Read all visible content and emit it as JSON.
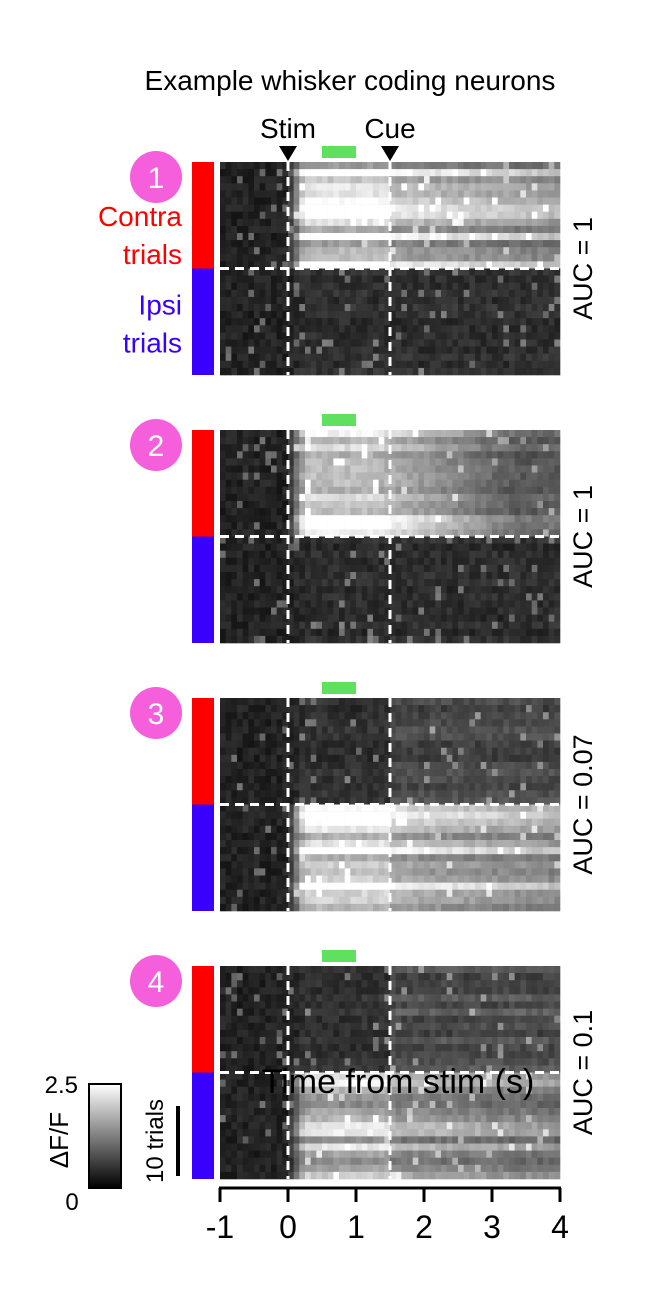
{
  "chart_data": {
    "type": "heatmap",
    "title": "Example whisker coding neurons",
    "xlabel": "Time from stim (s)",
    "xlim": [
      -1,
      4
    ],
    "xticks": [
      "-1",
      "0",
      "1",
      "2",
      "3",
      "4"
    ],
    "events": [
      {
        "label": "Stim",
        "time": 0
      },
      {
        "label": "Cue",
        "time": 1.5
      }
    ],
    "response_window": [
      0.5,
      1.0
    ],
    "response_window_color": "#5fe05f",
    "trial_groups": [
      {
        "label": "Contra\ntrials",
        "color": "#ff0000"
      },
      {
        "label": "Ipsi\ntrials",
        "color": "#3a00ff"
      }
    ],
    "colorbar": {
      "label": "ΔF/F",
      "min": "0",
      "max": "2.5"
    },
    "scalebar": "10 trials",
    "panels": [
      {
        "id": "1",
        "auc": "AUC = 1",
        "contra_trials": 15,
        "ipsi_trials": 15,
        "contra_level": 0.85,
        "ipsi_level": 0.15,
        "contra_profile": "sustained",
        "ipsi_profile": "weak",
        "show_events": true
      },
      {
        "id": "2",
        "auc": "AUC = 1",
        "contra_trials": 15,
        "ipsi_trials": 15,
        "contra_level": 0.75,
        "ipsi_level": 0.12,
        "contra_profile": "early",
        "ipsi_profile": "weak",
        "show_events": false
      },
      {
        "id": "3",
        "auc": "AUC = 0.07",
        "contra_trials": 15,
        "ipsi_trials": 15,
        "contra_level": 0.2,
        "ipsi_level": 0.85,
        "contra_profile": "late",
        "ipsi_profile": "sustained",
        "show_events": false
      },
      {
        "id": "4",
        "auc": "AUC = 0.1",
        "contra_trials": 15,
        "ipsi_trials": 15,
        "contra_level": 0.25,
        "ipsi_level": 0.7,
        "contra_profile": "late",
        "ipsi_profile": "sustained",
        "show_events": false
      }
    ],
    "panel_color": "#f55fdc",
    "background_color": "#101010"
  }
}
